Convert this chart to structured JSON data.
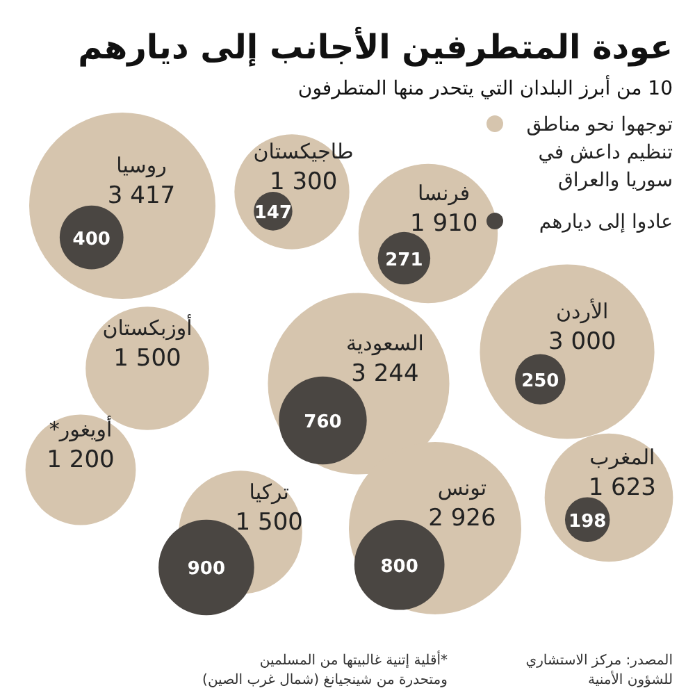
{
  "chart_data": {
    "type": "other",
    "title": "عودة المتطرفين الأجانب إلى ديارهم",
    "subtitle": "10 من أبرز البلدان التي يتحدر منها المتطرفون",
    "categories": [
      "فرنسا",
      "طاجيكستان",
      "روسيا",
      "الأردن",
      "السعودية",
      "أوزبكستان",
      "المغرب",
      "تونس",
      "تركيا",
      "أويغور*"
    ],
    "series": [
      {
        "name": "توجهوا نحو مناطق تنظيم داعش في سوريا والعراق",
        "color": "#d6c5ae",
        "values": [
          1910,
          1300,
          3417,
          3000,
          3244,
          1500,
          1623,
          2926,
          1500,
          1200
        ]
      },
      {
        "name": "عادوا إلى ديارهم",
        "color": "#4a4642",
        "values": [
          271,
          147,
          400,
          250,
          760,
          null,
          198,
          800,
          900,
          null
        ]
      }
    ],
    "data_labels": true,
    "legend": "top right",
    "annotations": [
      "المصدر: مركز الاستشاري للشؤون الأمنية",
      "*أقلية إتنية غالبيتها من المسلمين ومتحدرة من شينجيانغ (شمال غرب الصين)"
    ]
  }
}
